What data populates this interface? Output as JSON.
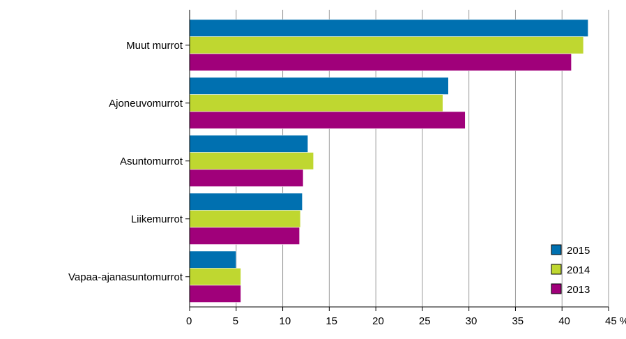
{
  "chart_data": {
    "type": "bar",
    "orientation": "horizontal",
    "categories": [
      "Muut murrot",
      "Ajoneuvomurrot",
      "Asuntomurrot",
      "Liikemurrot",
      "Vapaa-ajanasuntomurrot"
    ],
    "series": [
      {
        "name": "2015",
        "color": "#0070b0",
        "values": [
          42.8,
          27.8,
          12.7,
          12.1,
          5.0
        ]
      },
      {
        "name": "2014",
        "color": "#bfd730",
        "values": [
          42.3,
          27.2,
          13.3,
          11.9,
          5.5
        ]
      },
      {
        "name": "2013",
        "color": "#a0007a",
        "values": [
          41.0,
          29.6,
          12.2,
          11.8,
          5.5
        ]
      }
    ],
    "x_ticks": [
      "0",
      "5",
      "10",
      "15",
      "20",
      "25",
      "30",
      "35",
      "40",
      "45 %"
    ],
    "xlim": [
      0,
      45
    ],
    "grid": true,
    "legend_position": "bottom-right"
  }
}
